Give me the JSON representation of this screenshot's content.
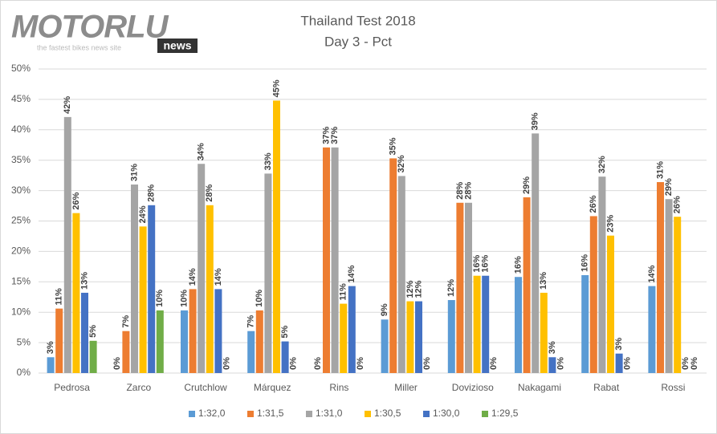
{
  "logo": {
    "text": "MOTORLU",
    "badge": "news",
    "tagline": "the fastest bikes news site"
  },
  "chart_data": {
    "type": "bar",
    "title": "Thailand Test 2018",
    "subtitle": "Day 3 - Pct",
    "categories": [
      "Pedrosa",
      "Zarco",
      "Crutchlow",
      "Márquez",
      "Rins",
      "Miller",
      "Dovizioso",
      "Nakagami",
      "Rabat",
      "Rossi"
    ],
    "series": [
      {
        "name": "1:32,0",
        "color": "#5b9bd5",
        "values": [
          2.6,
          0,
          10.3,
          6.9,
          0,
          8.8,
          12.0,
          15.8,
          16.1,
          14.3
        ],
        "value_labels": [
          "3%",
          "0%",
          "10%",
          "7%",
          "0%",
          "9%",
          "12%",
          "16%",
          "16%",
          "14%"
        ]
      },
      {
        "name": "1:31,5",
        "color": "#ed7d31",
        "values": [
          10.6,
          6.9,
          13.8,
          10.3,
          37.1,
          35.3,
          28.0,
          28.9,
          25.8,
          31.4
        ],
        "value_labels": [
          "11%",
          "7%",
          "14%",
          "10%",
          "37%",
          "35%",
          "28%",
          "29%",
          "26%",
          "31%"
        ]
      },
      {
        "name": "1:31,0",
        "color": "#a5a5a5",
        "values": [
          42.1,
          31.0,
          34.4,
          32.8,
          37.1,
          32.4,
          28.0,
          39.4,
          32.3,
          28.6
        ],
        "value_labels": [
          "42%",
          "31%",
          "34%",
          "33%",
          "37%",
          "32%",
          "28%",
          "39%",
          "32%",
          "29%"
        ]
      },
      {
        "name": "1:30,5",
        "color": "#ffc000",
        "values": [
          26.3,
          24.1,
          27.6,
          44.8,
          11.4,
          11.8,
          16.0,
          13.2,
          22.6,
          25.7
        ],
        "value_labels": [
          "26%",
          "24%",
          "28%",
          "45%",
          "11%",
          "12%",
          "16%",
          "13%",
          "23%",
          "26%"
        ]
      },
      {
        "name": "1:30,0",
        "color": "#4472c4",
        "values": [
          13.2,
          27.6,
          13.8,
          5.2,
          14.3,
          11.8,
          16.0,
          2.6,
          3.2,
          0
        ],
        "value_labels": [
          "13%",
          "28%",
          "14%",
          "5%",
          "14%",
          "12%",
          "16%",
          "3%",
          "3%",
          "0%"
        ]
      },
      {
        "name": "1:29,5",
        "color": "#70ad47",
        "values": [
          5.3,
          10.3,
          0,
          0,
          0,
          0,
          0,
          0,
          0,
          0
        ],
        "value_labels": [
          "5%",
          "10%",
          "0%",
          "0%",
          "0%",
          "0%",
          "0%",
          "0%",
          "0%",
          "0%"
        ]
      }
    ],
    "ylim": [
      0,
      50
    ],
    "yticks": [
      {
        "value": 0,
        "label": "0%"
      },
      {
        "value": 5,
        "label": "5%"
      },
      {
        "value": 10,
        "label": "10%"
      },
      {
        "value": 15,
        "label": "15%"
      },
      {
        "value": 20,
        "label": "20%"
      },
      {
        "value": 25,
        "label": "25%"
      },
      {
        "value": 30,
        "label": "30%"
      },
      {
        "value": 35,
        "label": "35%"
      },
      {
        "value": 40,
        "label": "40%"
      },
      {
        "value": 45,
        "label": "45%"
      },
      {
        "value": 50,
        "label": "50%"
      }
    ],
    "grid": true,
    "legend": "bottom"
  }
}
